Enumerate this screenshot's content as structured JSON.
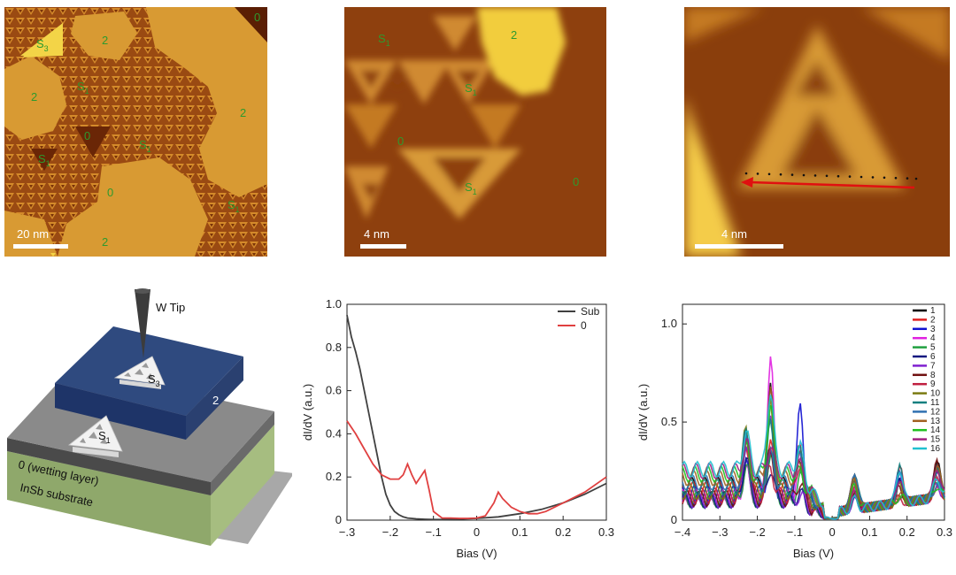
{
  "stm_panels": [
    {
      "scalebar": "20 nm",
      "labels": [
        {
          "text": "S",
          "sub": "3"
        },
        {
          "text": "2",
          "sub": ""
        },
        {
          "text": "0",
          "sub": ""
        },
        {
          "text": "2",
          "sub": ""
        },
        {
          "text": "S",
          "sub": "1"
        },
        {
          "text": "2",
          "sub": ""
        },
        {
          "text": "0",
          "sub": ""
        },
        {
          "text": "S",
          "sub": "1"
        },
        {
          "text": "S",
          "sub": "1"
        },
        {
          "text": "0",
          "sub": ""
        },
        {
          "text": "S",
          "sub": "1"
        },
        {
          "text": "2",
          "sub": ""
        }
      ]
    },
    {
      "scalebar": "4 nm",
      "labels": [
        {
          "text": "S",
          "sub": "1"
        },
        {
          "text": "2",
          "sub": ""
        },
        {
          "text": "S",
          "sub": "1"
        },
        {
          "text": "0",
          "sub": ""
        },
        {
          "text": "S",
          "sub": "1"
        },
        {
          "text": "0",
          "sub": ""
        }
      ]
    },
    {
      "scalebar": "4 nm",
      "labels": []
    }
  ],
  "diagram": {
    "tip_label": "W Tip",
    "s3_label": "S",
    "s3_sub": "3",
    "s1_label": "S",
    "s1_sub": "1",
    "layer2_label": "2",
    "wetting_label": "0 (wetting layer)",
    "substrate_label": "InSb substrate",
    "colors": {
      "top_layer": "#2f4a7f",
      "wetting": "#6a6a6a",
      "substrate": "#8fa86b"
    }
  },
  "chart_data": [
    {
      "type": "line",
      "title": "",
      "xlabel": "Bias (V)",
      "ylabel": "dI/dV (a.u.)",
      "xlim": [
        -0.3,
        0.3
      ],
      "ylim": [
        0,
        1.0
      ],
      "xticks": [
        -0.3,
        -0.2,
        -0.1,
        0,
        0.1,
        0.2,
        0.3
      ],
      "yticks": [
        0,
        0.2,
        0.4,
        0.6,
        0.8,
        1.0
      ],
      "legend_position": "top-right",
      "series": [
        {
          "name": "Sub",
          "color": "#404040",
          "x": [
            -0.3,
            -0.29,
            -0.28,
            -0.27,
            -0.26,
            -0.25,
            -0.24,
            -0.23,
            -0.22,
            -0.21,
            -0.2,
            -0.19,
            -0.18,
            -0.17,
            -0.16,
            -0.14,
            -0.12,
            -0.1,
            -0.08,
            -0.05,
            0,
            0.05,
            0.1,
            0.15,
            0.2,
            0.25,
            0.3
          ],
          "y": [
            0.95,
            0.85,
            0.78,
            0.7,
            0.6,
            0.5,
            0.4,
            0.3,
            0.2,
            0.12,
            0.07,
            0.04,
            0.025,
            0.015,
            0.01,
            0.006,
            0.004,
            0.003,
            0.003,
            0.004,
            0.008,
            0.015,
            0.03,
            0.05,
            0.08,
            0.12,
            0.17
          ]
        },
        {
          "name": "0",
          "color": "#e04040",
          "x": [
            -0.3,
            -0.28,
            -0.26,
            -0.24,
            -0.22,
            -0.2,
            -0.18,
            -0.17,
            -0.16,
            -0.15,
            -0.14,
            -0.13,
            -0.12,
            -0.11,
            -0.1,
            -0.08,
            -0.06,
            -0.04,
            -0.02,
            0,
            0.02,
            0.04,
            0.05,
            0.06,
            0.08,
            0.1,
            0.12,
            0.14,
            0.16,
            0.2,
            0.25,
            0.3
          ],
          "y": [
            0.46,
            0.4,
            0.33,
            0.26,
            0.21,
            0.19,
            0.19,
            0.21,
            0.26,
            0.21,
            0.17,
            0.2,
            0.23,
            0.14,
            0.04,
            0.01,
            0.01,
            0.008,
            0.008,
            0.01,
            0.02,
            0.08,
            0.13,
            0.1,
            0.06,
            0.04,
            0.03,
            0.03,
            0.04,
            0.08,
            0.13,
            0.2
          ]
        }
      ]
    },
    {
      "type": "line",
      "title": "",
      "xlabel": "Bias (V)",
      "ylabel": "dI/dV (a.u.)",
      "xlim": [
        -0.4,
        0.3
      ],
      "ylim": [
        0,
        1.1
      ],
      "xticks": [
        -0.4,
        -0.3,
        -0.2,
        -0.1,
        0,
        0.1,
        0.2,
        0.3
      ],
      "yticks": [
        0,
        0.5,
        1.0
      ],
      "legend_position": "top-right",
      "series": [
        {
          "name": "1",
          "color": "#000000"
        },
        {
          "name": "2",
          "color": "#e02020"
        },
        {
          "name": "3",
          "color": "#1010d0"
        },
        {
          "name": "4",
          "color": "#e020e0"
        },
        {
          "name": "5",
          "color": "#20a040"
        },
        {
          "name": "6",
          "color": "#101880"
        },
        {
          "name": "7",
          "color": "#8020d0"
        },
        {
          "name": "8",
          "color": "#701010"
        },
        {
          "name": "9",
          "color": "#c02040"
        },
        {
          "name": "10",
          "color": "#7a7a10"
        },
        {
          "name": "11",
          "color": "#108080"
        },
        {
          "name": "12",
          "color": "#3070b0"
        },
        {
          "name": "13",
          "color": "#a06020"
        },
        {
          "name": "14",
          "color": "#20c020"
        },
        {
          "name": "15",
          "color": "#a02080"
        },
        {
          "name": "16",
          "color": "#20c0d0"
        }
      ]
    }
  ]
}
